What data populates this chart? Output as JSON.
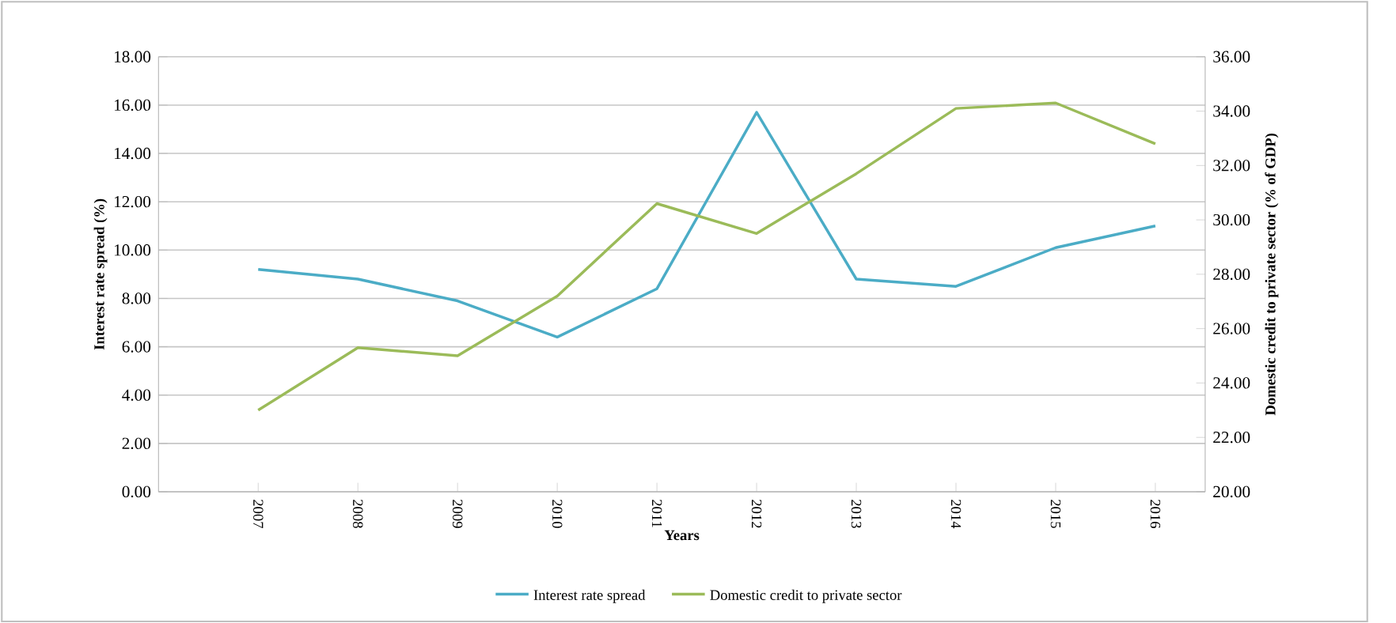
{
  "chart_data": {
    "type": "line",
    "xlabel": "Years",
    "ylabel": "Interest rate spread (%)",
    "y2label": "Domestic credit to private sector (% of GDP)",
    "categories": [
      "2007",
      "2008",
      "2009",
      "2010",
      "2011",
      "2012",
      "2013",
      "2014",
      "2015",
      "2016"
    ],
    "series": [
      {
        "name": "Interest rate spread",
        "color": "#4bacc6",
        "values": [
          9.2,
          8.8,
          7.9,
          6.4,
          8.4,
          15.7,
          8.8,
          8.5,
          10.1,
          11.0
        ]
      },
      {
        "name": "Domestic credit to private sector",
        "color": "#9bbb59",
        "axis": "y2",
        "values": [
          23.0,
          25.3,
          25.0,
          27.2,
          30.6,
          29.5,
          31.7,
          34.1,
          34.3,
          32.8
        ]
      }
    ],
    "ylim": [
      0,
      18
    ],
    "yticks": [
      {
        "value": 0,
        "label": "0.00"
      },
      {
        "value": 2,
        "label": "2.00"
      },
      {
        "value": 4,
        "label": "4.00"
      },
      {
        "value": 6,
        "label": "6.00"
      },
      {
        "value": 8,
        "label": "8.00"
      },
      {
        "value": 10,
        "label": "10.00"
      },
      {
        "value": 12,
        "label": "12.00"
      },
      {
        "value": 14,
        "label": "14.00"
      },
      {
        "value": 16,
        "label": "16.00"
      },
      {
        "value": 18,
        "label": "18.00"
      }
    ],
    "y2lim": [
      20,
      36
    ],
    "y2ticks": [
      {
        "value": 20,
        "label": "20.00"
      },
      {
        "value": 22,
        "label": "22.00"
      },
      {
        "value": 24,
        "label": "24.00"
      },
      {
        "value": 26,
        "label": "26.00"
      },
      {
        "value": 28,
        "label": "28.00"
      },
      {
        "value": 30,
        "label": "30.00"
      },
      {
        "value": 32,
        "label": "32.00"
      },
      {
        "value": 34,
        "label": "34.00"
      },
      {
        "value": 36,
        "label": "36.00"
      }
    ],
    "grid": "y",
    "legend": "bottom",
    "marker": "none",
    "line_style": "solid"
  }
}
